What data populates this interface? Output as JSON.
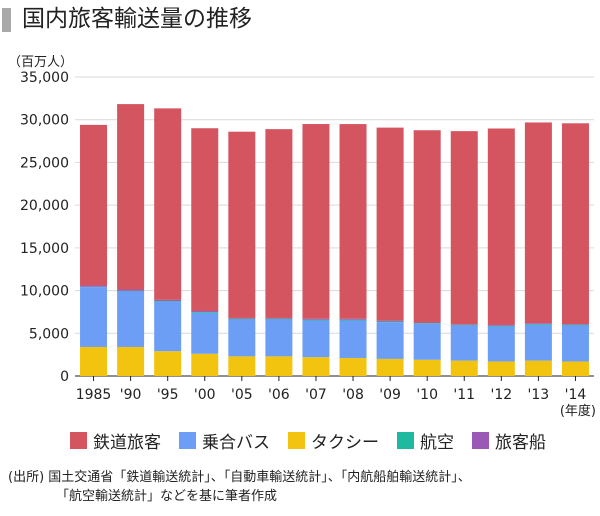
{
  "title": "国内旅客輸送量の推移",
  "chart_data": {
    "type": "bar",
    "stacked": true,
    "unit_label": "（百万人）",
    "x_unit_label": "(年度)",
    "categories": [
      "1985",
      "'90",
      "'95",
      "'00",
      "'05",
      "'06",
      "'07",
      "'08",
      "'09",
      "'10",
      "'11",
      "'12",
      "'13",
      "'14"
    ],
    "ylim": [
      0,
      35000
    ],
    "yticks": [
      "0",
      "5,000",
      "10,000",
      "15,000",
      "20,000",
      "25,000",
      "30,000",
      "35,000"
    ],
    "ytick_values": [
      0,
      5000,
      10000,
      15000,
      20000,
      25000,
      30000,
      35000
    ],
    "grid": true,
    "series": [
      {
        "name": "タクシー",
        "color": "#f2c40f",
        "values": [
          3400,
          3400,
          2900,
          2600,
          2300,
          2300,
          2200,
          2100,
          2000,
          1900,
          1800,
          1700,
          1800,
          1700
        ]
      },
      {
        "name": "乗合バス",
        "color": "#6d9ef5",
        "values": [
          7000,
          6500,
          5800,
          4800,
          4300,
          4300,
          4300,
          4400,
          4300,
          4200,
          4100,
          4100,
          4200,
          4200
        ]
      },
      {
        "name": "航空",
        "color": "#1fb8a0",
        "values": [
          44,
          65,
          78,
          93,
          95,
          97,
          95,
          91,
          84,
          82,
          79,
          86,
          92,
          95
        ]
      },
      {
        "name": "旅客船",
        "color": "#9b59b6",
        "values": [
          153,
          163,
          149,
          110,
          103,
          99,
          100,
          99,
          92,
          85,
          84,
          87,
          88,
          86
        ]
      },
      {
        "name": "鉄道旅客",
        "color": "#d4545f",
        "values": [
          18800,
          21700,
          22400,
          21400,
          21800,
          22100,
          22800,
          22800,
          22600,
          22500,
          22600,
          23000,
          23500,
          23500
        ]
      }
    ]
  },
  "legend": [
    {
      "name": "鉄道旅客",
      "color": "#d4545f"
    },
    {
      "name": "乗合バス",
      "color": "#6d9ef5"
    },
    {
      "name": "タクシー",
      "color": "#f2c40f"
    },
    {
      "name": "航空",
      "color": "#1fb8a0"
    },
    {
      "name": "旅客船",
      "color": "#9b59b6"
    }
  ],
  "source": {
    "line1": "(出所) 国土交通省「鉄道輸送統計」、「自動車輸送統計」、「内航船舶輸送統計」、",
    "line2": "「航空輸送統計」などを基に筆者作成"
  }
}
